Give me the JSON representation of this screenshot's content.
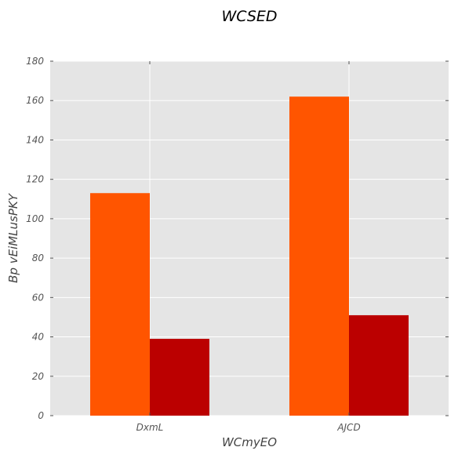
{
  "chart_data": {
    "type": "bar",
    "title": "WCSED",
    "xlabel": "WCmyEO",
    "ylabel": "Bp vEiMLusPKY",
    "categories": [
      "DxmL",
      "AJCD"
    ],
    "series": [
      {
        "values": [
          113,
          162
        ],
        "color": "#ff5500"
      },
      {
        "values": [
          39,
          51
        ],
        "color": "#bb0000"
      }
    ],
    "ylim": [
      0,
      180
    ],
    "yticks": [
      0,
      20,
      40,
      60,
      80,
      100,
      120,
      140,
      160,
      180
    ],
    "grid": true,
    "background": "#e5e5e5"
  }
}
